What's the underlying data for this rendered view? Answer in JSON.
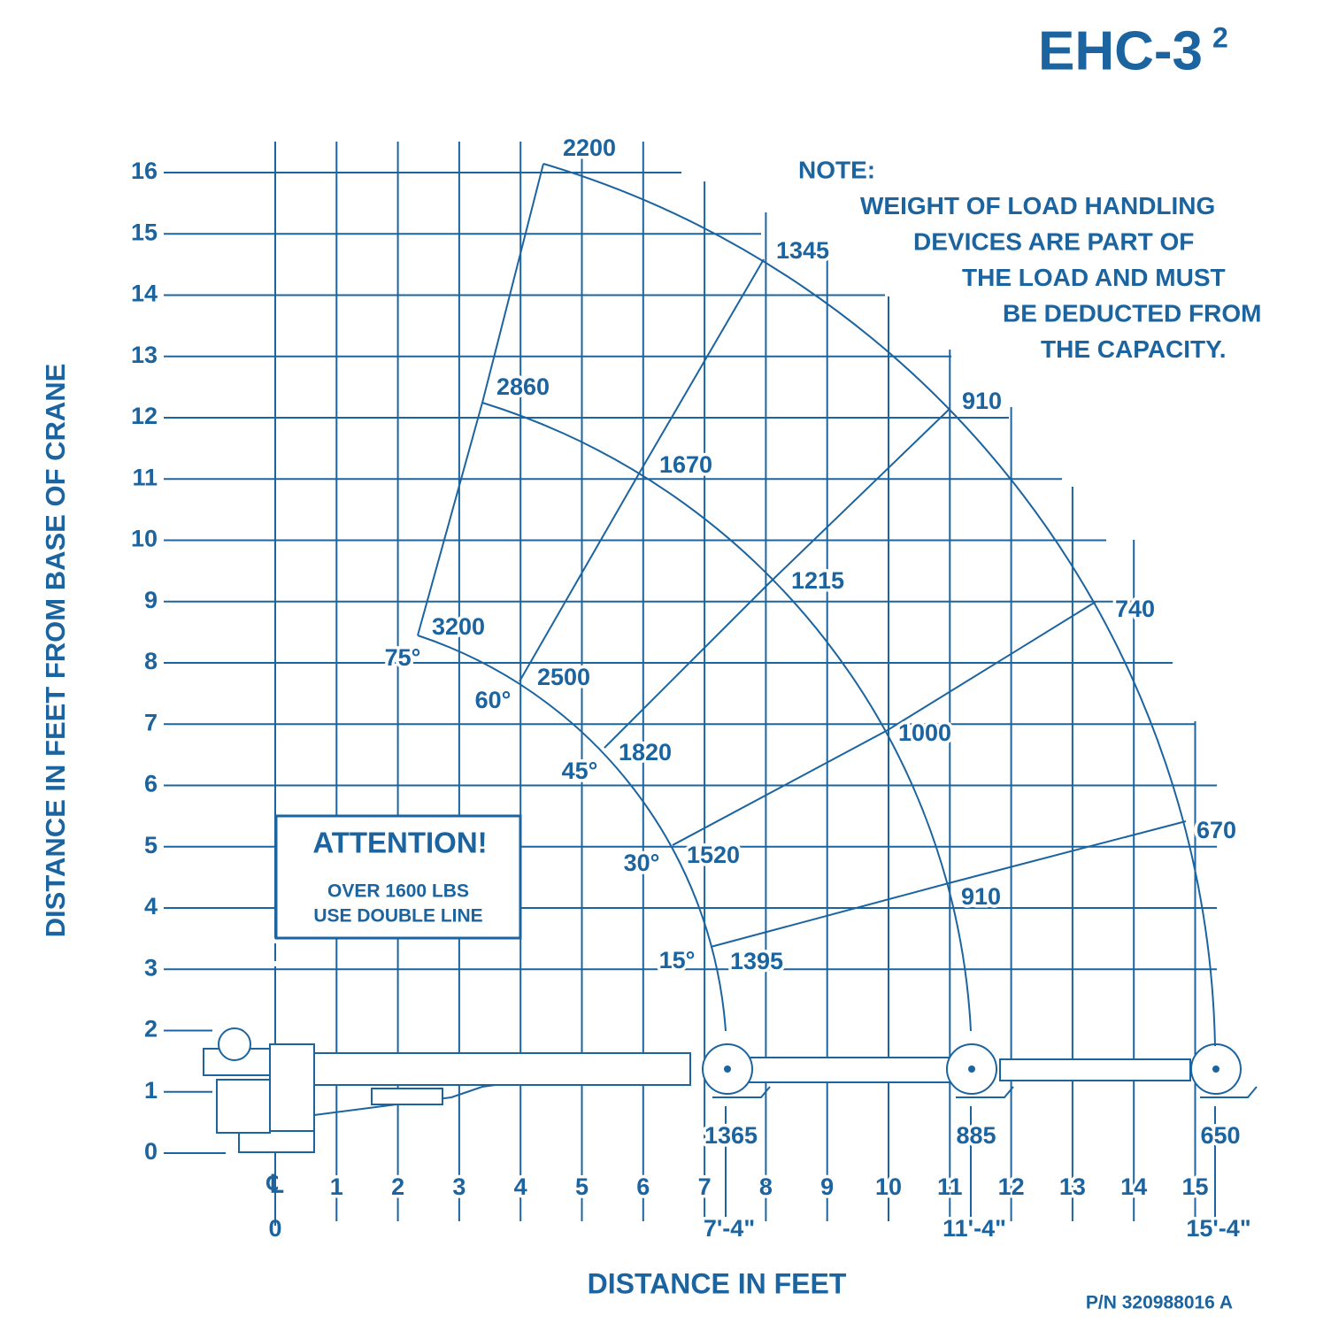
{
  "title": {
    "text": "EHC-3",
    "superscript": "2"
  },
  "note": [
    "NOTE:",
    "WEIGHT OF LOAD HANDLING",
    "DEVICES ARE PART OF",
    "THE LOAD AND MUST",
    "BE DEDUCTED FROM",
    "THE CAPACITY."
  ],
  "y_axis": {
    "label": "DISTANCE IN FEET FROM BASE OF CRANE",
    "ticks": [
      0,
      1,
      2,
      3,
      4,
      5,
      6,
      7,
      8,
      9,
      10,
      11,
      12,
      13,
      14,
      15,
      16
    ]
  },
  "x_axis": {
    "label": "DISTANCE IN FEET",
    "centerline": "℄",
    "origin": "0",
    "ticks": [
      1,
      2,
      3,
      4,
      5,
      6,
      7,
      8,
      9,
      10,
      11,
      12,
      13,
      14,
      15
    ]
  },
  "boom_lengths": [
    "7'-4\"",
    "11'-4\"",
    "15'-4\""
  ],
  "ground_loads": [
    "1365",
    "885",
    "650"
  ],
  "angles": [
    {
      "angle": "75°",
      "loads": [
        "3200",
        "2860",
        "2200"
      ]
    },
    {
      "angle": "60°",
      "loads": [
        "2500",
        "1670",
        "1345"
      ]
    },
    {
      "angle": "45°",
      "loads": [
        "1820",
        "1215",
        "910"
      ]
    },
    {
      "angle": "30°",
      "loads": [
        "1520",
        "1000",
        "740"
      ]
    },
    {
      "angle": "15°",
      "loads": [
        "1395",
        "910",
        "670"
      ]
    }
  ],
  "attention": {
    "heading": "ATTENTION!",
    "lines": [
      "OVER 1600 LBS",
      "USE DOUBLE LINE"
    ]
  },
  "part_number": "P/N 320988016 A"
}
